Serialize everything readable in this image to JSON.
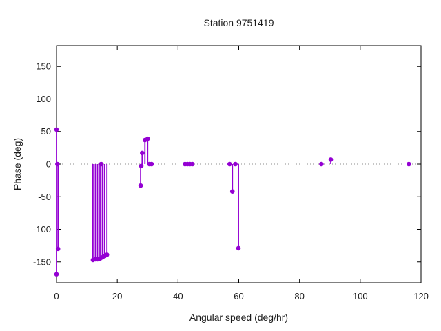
{
  "colors": {
    "background": "#ffffff",
    "axis": "#000000",
    "series": "#9400d3",
    "zero_line": "#8c8c8c",
    "text": "#1c1c1c"
  },
  "chart_data": {
    "type": "scatter",
    "style": "impulses+points",
    "title": "Station 9751419",
    "xlabel": "Angular speed (deg/hr)",
    "ylabel": "Phase (deg)",
    "xlim": [
      0,
      120
    ],
    "ylim": [
      -182,
      182
    ],
    "xticks": [
      0,
      20,
      40,
      60,
      80,
      100,
      120
    ],
    "yticks": [
      -150,
      -100,
      -50,
      0,
      50,
      100,
      150
    ],
    "grid": false,
    "legend": "none",
    "zero_line_y": 0,
    "series": [
      {
        "name": "phase",
        "color": "#9400d3",
        "marker": "filled-circle",
        "points": [
          [
            0.0,
            53
          ],
          [
            0.3,
            0
          ],
          [
            0.5,
            -130
          ],
          [
            0.0,
            -169
          ],
          [
            12.0,
            -147
          ],
          [
            12.8,
            -146
          ],
          [
            13.5,
            -146
          ],
          [
            14.3,
            -145
          ],
          [
            15.1,
            -143
          ],
          [
            15.8,
            -141
          ],
          [
            16.6,
            -139
          ],
          [
            14.7,
            0
          ],
          [
            27.7,
            -33
          ],
          [
            27.9,
            -3
          ],
          [
            28.2,
            17
          ],
          [
            29.1,
            37
          ],
          [
            30.0,
            39
          ],
          [
            30.6,
            0
          ],
          [
            31.3,
            0
          ],
          [
            42.3,
            0
          ],
          [
            43.1,
            0
          ],
          [
            43.9,
            0
          ],
          [
            44.7,
            0
          ],
          [
            57.0,
            0
          ],
          [
            57.9,
            -42
          ],
          [
            58.9,
            0
          ],
          [
            59.9,
            -129
          ],
          [
            87.2,
            0
          ],
          [
            90.3,
            7
          ],
          [
            116.0,
            0
          ]
        ]
      }
    ]
  }
}
